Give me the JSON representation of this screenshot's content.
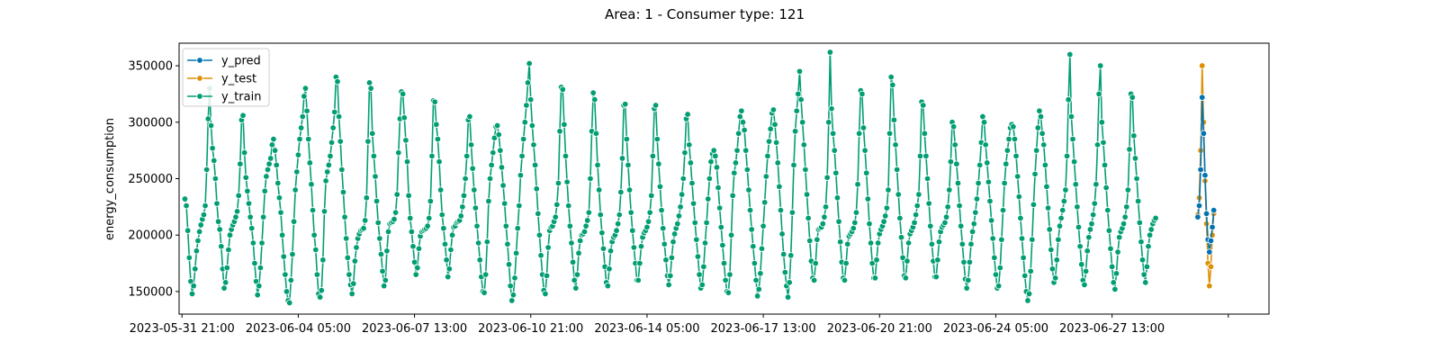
{
  "chart_data": {
    "type": "line",
    "title": "Area: 1 - Consumer type: 121",
    "xlabel": "",
    "ylabel": "energy_consumption",
    "ylim": [
      130000,
      370000
    ],
    "yticks": [
      150000,
      200000,
      250000,
      300000,
      350000
    ],
    "ytick_labels": [
      "150000",
      "200000",
      "250000",
      "300000",
      "350000"
    ],
    "xticks": [
      "2023-05-31 21:00",
      "2023-06-04 05:00",
      "2023-06-07 13:00",
      "2023-06-10 21:00",
      "2023-06-14 05:00",
      "2023-06-17 13:00",
      "2023-06-20 21:00",
      "2023-06-24 05:00",
      "2023-06-27 13:00",
      ""
    ],
    "xlim": [
      "2023-05-31 19:00",
      "2023-07-02 01:00"
    ],
    "grid": false,
    "legend_position": "top-left",
    "colors": {
      "y_pred": "#0173b2",
      "y_test": "#de8f05",
      "y_train": "#029e73"
    },
    "series": [
      {
        "name": "y_pred",
        "start": "2023-06-30 00:00",
        "values": [
          216000,
          226000,
          258000,
          322000,
          290000,
          253000,
          219000,
          196000,
          185000,
          195000,
          207000,
          222000
        ]
      },
      {
        "name": "y_test",
        "start": "2023-06-30 00:00",
        "values": [
          218000,
          233000,
          275000,
          350000,
          300000,
          248000,
          210000,
          175000,
          155000,
          172000,
          200000,
          219000
        ]
      },
      {
        "name": "y_train",
        "start": "2023-05-31 23:00",
        "values": [
          232000,
          226000,
          204000,
          180000,
          159000,
          148000,
          155000,
          170000,
          186000,
          195000,
          203000,
          209000,
          214000,
          218000,
          226000,
          258000,
          303000,
          330000,
          297000,
          277000,
          266000,
          250000,
          228000,
          212000,
          205000,
          190000,
          170000,
          153000,
          158000,
          171000,
          187000,
          200000,
          205000,
          209000,
          212000,
          216000,
          221000,
          235000,
          263000,
          302000,
          306000,
          273000,
          251000,
          239000,
          228000,
          216000,
          206000,
          193000,
          175000,
          159000,
          147000,
          155000,
          171000,
          193000,
          216000,
          239000,
          252000,
          258000,
          263000,
          268000,
          280000,
          285000,
          275000,
          262000,
          246000,
          233000,
          220000,
          200000,
          181000,
          165000,
          150000,
          142000,
          140000,
          160000,
          183000,
          212000,
          240000,
          256000,
          271000,
          285000,
          295000,
          305000,
          323000,
          330000,
          310000,
          285000,
          264000,
          245000,
          222000,
          200000,
          187000,
          165000,
          148000,
          145000,
          151000,
          178000,
          221000,
          248000,
          256000,
          262000,
          270000,
          282000,
          295000,
          309000,
          340000,
          336000,
          305000,
          283000,
          258000,
          238000,
          216000,
          197000,
          180000,
          165000,
          156000,
          148000,
          157000,
          177000,
          189000,
          197000,
          201000,
          204000,
          205000,
          206000,
          213000,
          233000,
          283000,
          335000,
          330000,
          290000,
          270000,
          252000,
          230000,
          211000,
          197000,
          183000,
          168000,
          155000,
          160000,
          186000,
          203000,
          210000,
          211000,
          212000,
          214000,
          220000,
          236000,
          273000,
          303000,
          327000,
          325000,
          304000,
          284000,
          265000,
          235000,
          215000,
          203000,
          190000,
          176000,
          165000,
          171000,
          188000,
          199000,
          203000,
          204000,
          205000,
          206000,
          208000,
          215000,
          230000,
          270000,
          319000,
          318000,
          298000,
          285000,
          265000,
          240000,
          218000,
          206000,
          192000,
          178000,
          163000,
          170000,
          187000,
          200000,
          207000,
          208000,
          211000,
          212000,
          213000,
          217000,
          225000,
          235000,
          250000,
          270000,
          302000,
          305000,
          280000,
          259000,
          240000,
          224000,
          208000,
          193000,
          178000,
          163000,
          150000,
          149000,
          165000,
          194000,
          230000,
          250000,
          262000,
          273000,
          286000,
          296000,
          297000,
          289000,
          275000,
          260000,
          244000,
          228000,
          208000,
          192000,
          174000,
          155000,
          142000,
          147000,
          162000,
          184000,
          206000,
          226000,
          253000,
          270000,
          285000,
          300000,
          315000,
          335000,
          352000,
          320000,
          297000,
          280000,
          262000,
          241000,
          219000,
          200000,
          182000,
          165000,
          151000,
          148000,
          164000,
          189000,
          204000,
          207000,
          208000,
          212000,
          216000,
          227000,
          246000,
          292000,
          331000,
          329000,
          298000,
          270000,
          247000,
          226000,
          208000,
          193000,
          176000,
          160000,
          153000,
          165000,
          184000,
          195000,
          200000,
          201000,
          203000,
          208000,
          213000,
          220000,
          250000,
          292000,
          326000,
          320000,
          290000,
          262000,
          240000,
          218000,
          202000,
          188000,
          172000,
          158000,
          155000,
          170000,
          186000,
          194000,
          198000,
          200000,
          204000,
          210000,
          218000,
          238000,
          268000,
          315000,
          316000,
          285000,
          262000,
          240000,
          220000,
          204000,
          189000,
          175000,
          160000,
          160000,
          175000,
          190000,
          198000,
          202000,
          204000,
          207000,
          212000,
          220000,
          235000,
          270000,
          312000,
          315000,
          285000,
          263000,
          243000,
          222000,
          206000,
          192000,
          178000,
          164000,
          156000,
          164000,
          180000,
          194000,
          201000,
          206000,
          210000,
          217000,
          225000,
          236000,
          250000,
          273000,
          303000,
          307000,
          280000,
          264000,
          246000,
          228000,
          211000,
          196000,
          181000,
          165000,
          153000,
          156000,
          172000,
          193000,
          211000,
          232000,
          250000,
          265000,
          272000,
          275000,
          270000,
          260000,
          242000,
          224000,
          207000,
          191000,
          175000,
          160000,
          150000,
          149000,
          165000,
          200000,
          235000,
          255000,
          264000,
          275000,
          290000,
          305000,
          310000,
          300000,
          293000,
          275000,
          258000,
          240000,
          222000,
          205000,
          190000,
          175000,
          160000,
          146000,
          152000,
          166000,
          188000,
          208000,
          229000,
          252000,
          270000,
          283000,
          294000,
          308000,
          311000,
          298000,
          282000,
          264000,
          243000,
          222000,
          201000,
          183000,
          167000,
          155000,
          145000,
          158000,
          182000,
          220000,
          262000,
          292000,
          310000,
          325000,
          345000,
          320000,
          300000,
          280000,
          258000,
          236000,
          215000,
          195000,
          177000,
          162000,
          160000,
          175000,
          196000,
          205000,
          206000,
          207000,
          210000,
          216000,
          225000,
          251000,
          300000,
          362000,
          312000,
          290000,
          275000,
          255000,
          233000,
          212000,
          194000,
          176000,
          162000,
          160000,
          175000,
          192000,
          199000,
          201000,
          203000,
          206000,
          211000,
          220000,
          245000,
          290000,
          328000,
          325000,
          295000,
          275000,
          255000,
          232000,
          210000,
          193000,
          175000,
          162000,
          162000,
          178000,
          193000,
          201000,
          205000,
          208000,
          212000,
          217000,
          224000,
          240000,
          290000,
          340000,
          333000,
          302000,
          280000,
          258000,
          236000,
          215000,
          198000,
          180000,
          164000,
          162000,
          177000,
          193000,
          201000,
          204000,
          207000,
          211000,
          218000,
          226000,
          236000,
          270000,
          318000,
          315000,
          290000,
          270000,
          250000,
          228000,
          208000,
          192000,
          177000,
          163000,
          163000,
          178000,
          194000,
          203000,
          207000,
          209000,
          211000,
          216000,
          225000,
          240000,
          265000,
          300000,
          296000,
          280000,
          263000,
          246000,
          226000,
          208000,
          192000,
          176000,
          161000,
          153000,
          160000,
          176000,
          192000,
          203000,
          210000,
          220000,
          232000,
          246000,
          262000,
          282000,
          305000,
          300000,
          280000,
          264000,
          247000,
          230000,
          213000,
          197000,
          180000,
          165000,
          153000,
          155000,
          171000,
          196000,
          222000,
          246000,
          263000,
          275000,
          285000,
          295000,
          298000,
          296000,
          285000,
          270000,
          252000,
          234000,
          215000,
          197000,
          180000,
          164000,
          150000,
          142000,
          148000,
          168000,
          196000,
          227000,
          254000,
          275000,
          295000,
          310000,
          305000,
          290000,
          280000,
          262000,
          243000,
          224000,
          205000,
          187000,
          170000,
          158000,
          162000,
          178000,
          196000,
          208000,
          215000,
          222000,
          230000,
          240000,
          270000,
          320000,
          360000,
          305000,
          285000,
          265000,
          245000,
          225000,
          207000,
          190000,
          174000,
          160000,
          156000,
          168000,
          186000,
          198000,
          205000,
          210000,
          218000,
          228000,
          245000,
          280000,
          325000,
          350000,
          300000,
          282000,
          262000,
          242000,
          222000,
          204000,
          188000,
          172000,
          158000,
          152000,
          166000,
          185000,
          198000,
          203000,
          206000,
          210000,
          216000,
          225000,
          240000,
          276000,
          325000,
          322000,
          288000,
          268000,
          250000,
          230000,
          211000,
          194000,
          178000,
          165000,
          158000,
          172000,
          190000,
          200000,
          205000,
          210000,
          213000,
          215000
        ]
      }
    ]
  }
}
